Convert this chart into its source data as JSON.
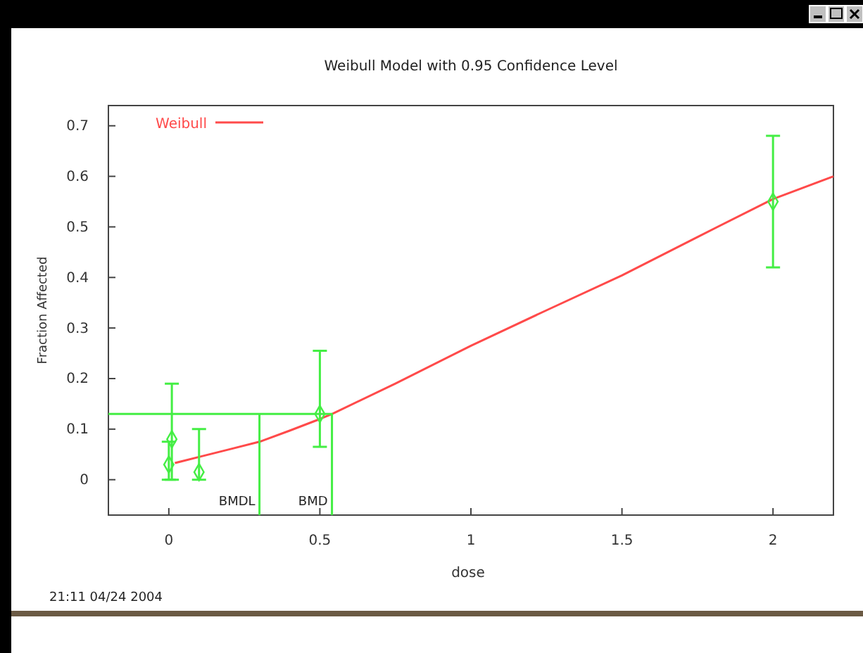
{
  "chart_data": {
    "type": "line",
    "title": "Weibull Model with 0.95 Confidence Level",
    "xlabel": "dose",
    "ylabel": "Fraction Affected",
    "xlim": [
      -0.2,
      2.2
    ],
    "xticks": [
      0,
      0.5,
      1,
      1.5,
      2
    ],
    "ylim": [
      -0.07,
      0.74
    ],
    "yticks": [
      0,
      0.1,
      0.2,
      0.3,
      0.4,
      0.5,
      0.6,
      0.7
    ],
    "grid": false,
    "legend": "top left",
    "line_style": "solid",
    "series": [
      {
        "name": "Weibull",
        "color": "#ff4a4a",
        "x": [
          0.02,
          0.1,
          0.2,
          0.3,
          0.4,
          0.5,
          0.54,
          0.75,
          1.0,
          1.25,
          1.5,
          1.75,
          2.0,
          2.2
        ],
        "values": [
          0.033,
          0.045,
          0.06,
          0.075,
          0.097,
          0.12,
          0.13,
          0.19,
          0.265,
          0.335,
          0.404,
          0.48,
          0.555,
          0.6
        ]
      },
      {
        "type": "scatter",
        "marker": "diamond",
        "color": "#44ee44",
        "x": [
          0,
          0.01,
          0.1,
          0.5,
          2
        ],
        "values": [
          0.03,
          0.08,
          0.015,
          0.13,
          0.55
        ],
        "errors": [
          [
            0,
            0.075
          ],
          [
            0,
            0.19
          ],
          [
            0,
            0.1
          ],
          [
            0.065,
            0.255
          ],
          [
            0.42,
            0.68
          ]
        ]
      },
      {
        "color": "#44ee44",
        "x": [
          -0.2,
          0.54,
          0.54
        ],
        "values": [
          0.13,
          0.13,
          -0.07
        ]
      },
      {
        "color": "#44ee44",
        "x": [
          0.3,
          0.3
        ],
        "values": [
          0.13,
          -0.07
        ]
      }
    ],
    "annotations": [
      {
        "text": "BMDL",
        "x": 0.3,
        "y": -0.05
      },
      {
        "text": "BMD",
        "x": 0.54,
        "y": -0.05
      },
      "21:11 04/24 2004"
    ]
  }
}
